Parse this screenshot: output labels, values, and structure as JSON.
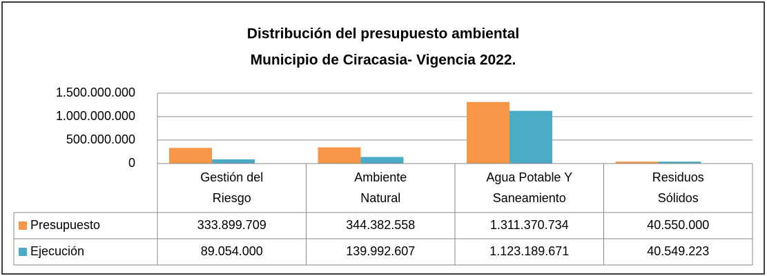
{
  "chart_data": {
    "type": "bar",
    "title": [
      "Distribución del presupuesto ambiental",
      "Municipio de Ciracasia- Vigencia 2022."
    ],
    "categories": [
      [
        "Gestión del",
        "Riesgo"
      ],
      [
        "Ambiente",
        "Natural"
      ],
      [
        "Agua Potable Y",
        "Saneamiento"
      ],
      [
        "Residuos",
        "Sólidos"
      ]
    ],
    "series": [
      {
        "name": "Presupuesto",
        "color": "#f79646",
        "values": [
          333899709,
          344382558,
          1311370734,
          40550000
        ],
        "value_labels": [
          "333.899.709",
          "344.382.558",
          "1.311.370.734",
          "40.550.000"
        ]
      },
      {
        "name": "Ejecución",
        "color": "#4bacc6",
        "values": [
          89054000,
          139992607,
          1123189671,
          40549223
        ],
        "value_labels": [
          "89.054.000",
          "139.992.607",
          "1.123.189.671",
          "40.549.223"
        ]
      }
    ],
    "ylim": [
      0,
      1500000000
    ],
    "yticks": [
      {
        "value": 0,
        "label": "0"
      },
      {
        "value": 500000000,
        "label": "500.000.000"
      },
      {
        "value": 1000000000,
        "label": "1.000.000.000"
      },
      {
        "value": 1500000000,
        "label": "1.500.000.000"
      }
    ],
    "grid": true
  }
}
